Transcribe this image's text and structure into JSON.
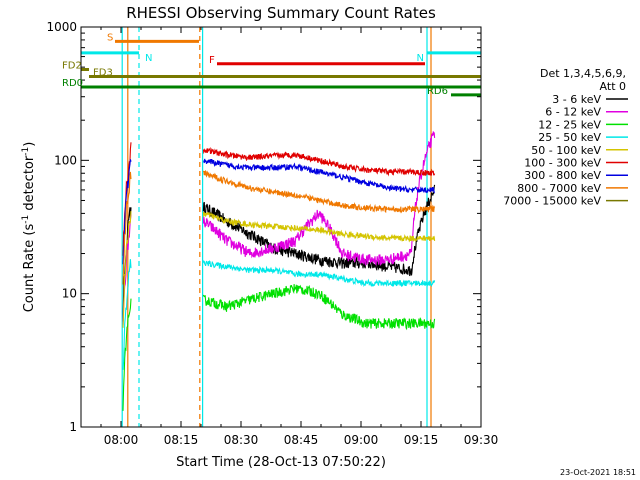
{
  "chart_data": {
    "type": "line",
    "title": "RHESSI Observing Summary Count Rates",
    "xlabel_prefix": "Start Time (",
    "xlabel_date": "28-Oct-13 07:50:22",
    "xlabel_suffix": ")",
    "ylabel": "Count Rate (s",
    "ylabel_sup1": "-1",
    "ylabel_mid": " detector",
    "ylabel_sup2": "-1",
    "ylabel_end": ")",
    "yscale": "log",
    "ylim": [
      1,
      1000
    ],
    "xlim_minutes": [
      470,
      570
    ],
    "xticks": [
      {
        "m": 480,
        "label": "08:00"
      },
      {
        "m": 495,
        "label": "08:15"
      },
      {
        "m": 510,
        "label": "08:30"
      },
      {
        "m": 525,
        "label": "08:45"
      },
      {
        "m": 540,
        "label": "09:00"
      },
      {
        "m": 555,
        "label": "09:15"
      },
      {
        "m": 570,
        "label": "09:30"
      }
    ],
    "yticks": [
      {
        "v": 1,
        "label": "1"
      },
      {
        "v": 10,
        "label": "10"
      },
      {
        "v": 100,
        "label": "100"
      },
      {
        "v": 1000,
        "label": "1000"
      }
    ],
    "legend_header": [
      "Det 1,3,4,5,6,9,",
      "Att 0"
    ],
    "legend_position": "right",
    "series": [
      {
        "name": "3 - 6 keV",
        "color": "#000000"
      },
      {
        "name": "6 - 12 keV",
        "color": "#e000e0"
      },
      {
        "name": "12 - 25 keV",
        "color": "#00e000"
      },
      {
        "name": "25 - 50 keV",
        "color": "#00e8e8"
      },
      {
        "name": "50 - 100 keV",
        "color": "#d4c400"
      },
      {
        "name": "100 - 300 keV",
        "color": "#e00000"
      },
      {
        "name": "300 - 800 keV",
        "color": "#0000e0"
      },
      {
        "name": "800 - 7000 keV",
        "color": "#f07800"
      },
      {
        "name": "7000 - 15000 keV",
        "color": "#787800"
      }
    ],
    "data_segments": [
      {
        "x": [
          480.5,
          482.5
        ]
      },
      {
        "x": [
          500.6,
          558.4
        ]
      }
    ],
    "approx_levels": {
      "3 - 6 keV": [
        45,
        35,
        28,
        22,
        20,
        18,
        17,
        17,
        16,
        15,
        60
      ],
      "6 - 12 keV": [
        35,
        25,
        20,
        22,
        25,
        40,
        20,
        18,
        18,
        20,
        160
      ],
      "12 - 25 keV": [
        9,
        8,
        9,
        10,
        11,
        10,
        7,
        6,
        6,
        6,
        6
      ],
      "25 - 50 keV": [
        17,
        16,
        15,
        15,
        14,
        14,
        13,
        12,
        12,
        12,
        12
      ],
      "50 - 100 keV": [
        40,
        35,
        33,
        32,
        31,
        30,
        28,
        27,
        26,
        26,
        26
      ],
      "100 - 300 keV": [
        120,
        110,
        105,
        108,
        110,
        100,
        90,
        85,
        82,
        82,
        80
      ],
      "300 - 800 keV": [
        100,
        92,
        88,
        88,
        90,
        82,
        75,
        68,
        62,
        60,
        60
      ],
      "800 - 7000 keV": [
        80,
        70,
        62,
        58,
        55,
        50,
        46,
        44,
        43,
        43,
        43
      ]
    },
    "annotations": [
      {
        "label": "S",
        "color": "#f07800",
        "x": [
          478.5,
          499.5
        ],
        "y_level": 780
      },
      {
        "label": "N",
        "color": "#00e8e8",
        "x": [
          470,
          484.5
        ],
        "y_level": 640
      },
      {
        "label": "N",
        "color": "#00e8e8",
        "x": [
          556.5,
          570
        ],
        "y_level": 640
      },
      {
        "label": "F",
        "color": "#e00000",
        "x": [
          504,
          556
        ],
        "y_level": 530
      },
      {
        "label": "FD2",
        "color": "#787800",
        "x": [
          470,
          472
        ],
        "y_level": 480
      },
      {
        "label": "FD3",
        "color": "#787800",
        "x": [
          472,
          570
        ],
        "y_level": 425
      },
      {
        "label": "RD0",
        "color": "#008000",
        "x": [
          470,
          570
        ],
        "y_level": 355
      },
      {
        "label": "RD6",
        "color": "#008000",
        "x": [
          562.5,
          570
        ],
        "y_level": 310
      }
    ],
    "vlines": [
      {
        "m": 480.3,
        "color": "#00e8e8",
        "dash": false
      },
      {
        "m": 484.5,
        "color": "#00e8e8",
        "dash": true
      },
      {
        "m": 481.7,
        "color": "#f07800",
        "dash": false
      },
      {
        "m": 499.7,
        "color": "#f07800",
        "dash": true
      },
      {
        "m": 500.4,
        "color": "#00e8e8",
        "dash": false
      },
      {
        "m": 556.5,
        "color": "#00e8e8",
        "dash": false
      },
      {
        "m": 557.5,
        "color": "#f07800",
        "dash": false
      },
      {
        "m": 570.3,
        "color": "#00e8e8",
        "dash": true
      }
    ]
  },
  "footer": {
    "timestamp": "23-Oct-2021 18:51"
  }
}
